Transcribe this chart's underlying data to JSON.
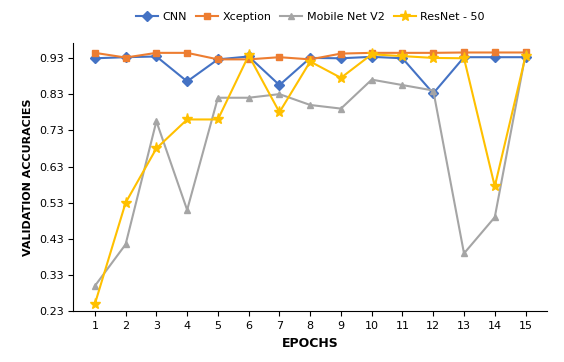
{
  "epochs": [
    1,
    2,
    3,
    4,
    5,
    6,
    7,
    8,
    9,
    10,
    11,
    12,
    13,
    14,
    15
  ],
  "CNN": [
    0.929,
    0.932,
    0.934,
    0.865,
    0.926,
    0.934,
    0.855,
    0.93,
    0.929,
    0.933,
    0.929,
    0.832,
    0.932,
    0.932,
    0.932
  ],
  "Xception": [
    0.944,
    0.931,
    0.944,
    0.944,
    0.926,
    0.926,
    0.932,
    0.926,
    0.942,
    0.944,
    0.944,
    0.944,
    0.945,
    0.945,
    0.945
  ],
  "MobileNetV2": [
    0.3,
    0.415,
    0.755,
    0.51,
    0.82,
    0.82,
    0.83,
    0.8,
    0.79,
    0.87,
    0.855,
    0.84,
    0.39,
    0.49,
    0.94
  ],
  "ResNet50": [
    0.25,
    0.53,
    0.68,
    0.76,
    0.76,
    0.937,
    0.78,
    0.92,
    0.875,
    0.94,
    0.935,
    0.93,
    0.929,
    0.575,
    0.935
  ],
  "CNN_color": "#4472C4",
  "Xception_color": "#ED7D31",
  "MobileNetV2_color": "#A5A5A5",
  "ResNet50_color": "#FFC000",
  "xlabel": "EPOCHS",
  "ylabel": "VALIDATION ACCURACIES",
  "ylim": [
    0.23,
    0.97
  ],
  "yticks": [
    0.23,
    0.33,
    0.43,
    0.53,
    0.63,
    0.73,
    0.83,
    0.93
  ],
  "legend_labels": [
    "CNN",
    "Xception",
    "Mobile Net V2",
    "ResNet - 50"
  ],
  "CNN_marker": "D",
  "Xception_marker": "s",
  "MobileNetV2_marker": "^",
  "ResNet50_marker": "*",
  "linewidth": 1.5,
  "markersize_small": 5,
  "markersize_star": 8,
  "bg_color": "#FFFFFF",
  "figure_width": 5.64,
  "figure_height": 3.62,
  "dpi": 100
}
